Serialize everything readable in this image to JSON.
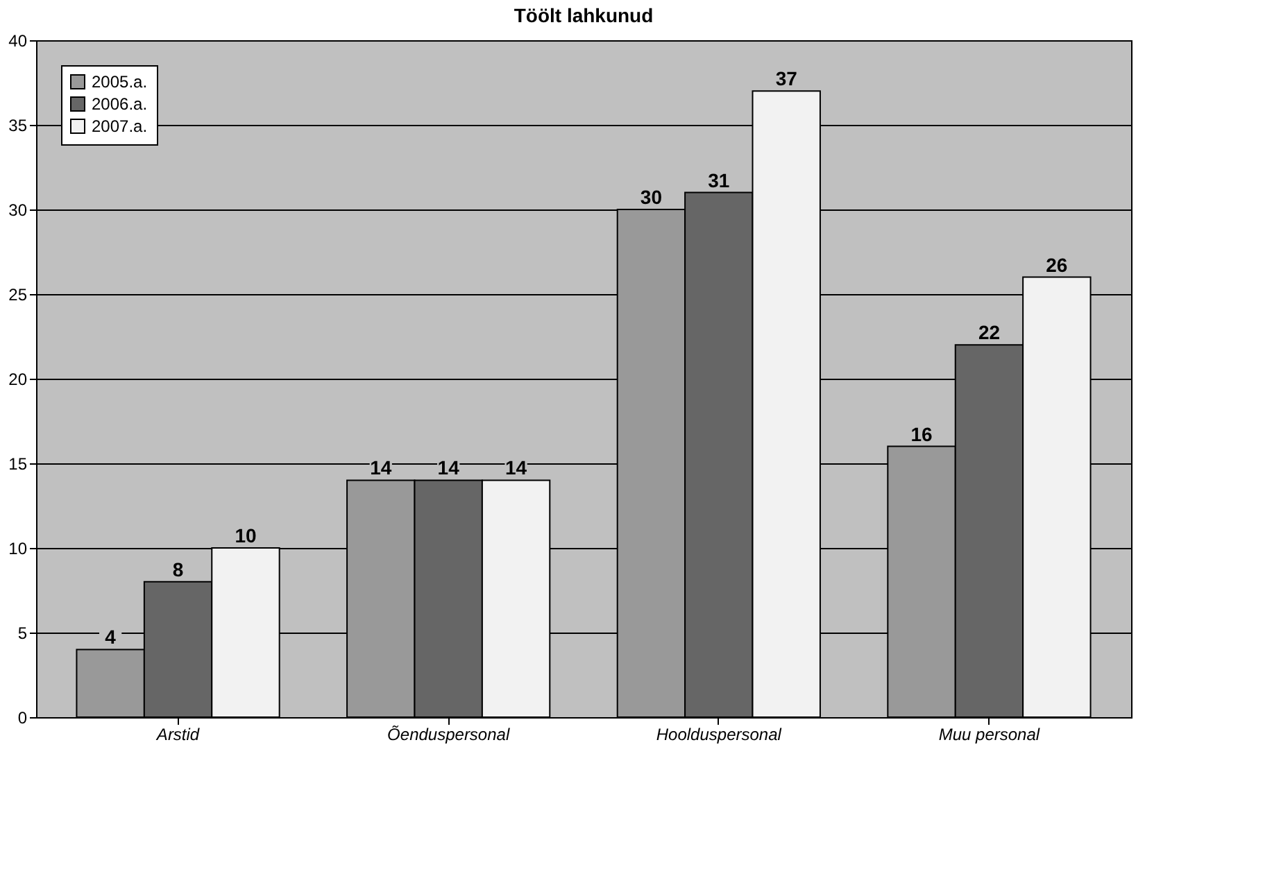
{
  "chart_data": {
    "type": "bar",
    "title": "Töölt lahkunud",
    "categories": [
      "Arstid",
      "Õenduspersonal",
      "Hoolduspersonal",
      "Muu personal"
    ],
    "series": [
      {
        "name": "2005.a.",
        "color": "#999999",
        "values": [
          4,
          14,
          30,
          16
        ]
      },
      {
        "name": "2006.a.",
        "color": "#666666",
        "values": [
          8,
          14,
          31,
          22
        ]
      },
      {
        "name": "2007.a.",
        "color": "#f2f2f2",
        "values": [
          10,
          14,
          37,
          26
        ]
      }
    ],
    "ylim": [
      0,
      40
    ],
    "yticks": [
      0,
      5,
      10,
      15,
      20,
      25,
      30,
      35,
      40
    ],
    "grid": "y",
    "legend": "top left",
    "data_labels": true
  }
}
